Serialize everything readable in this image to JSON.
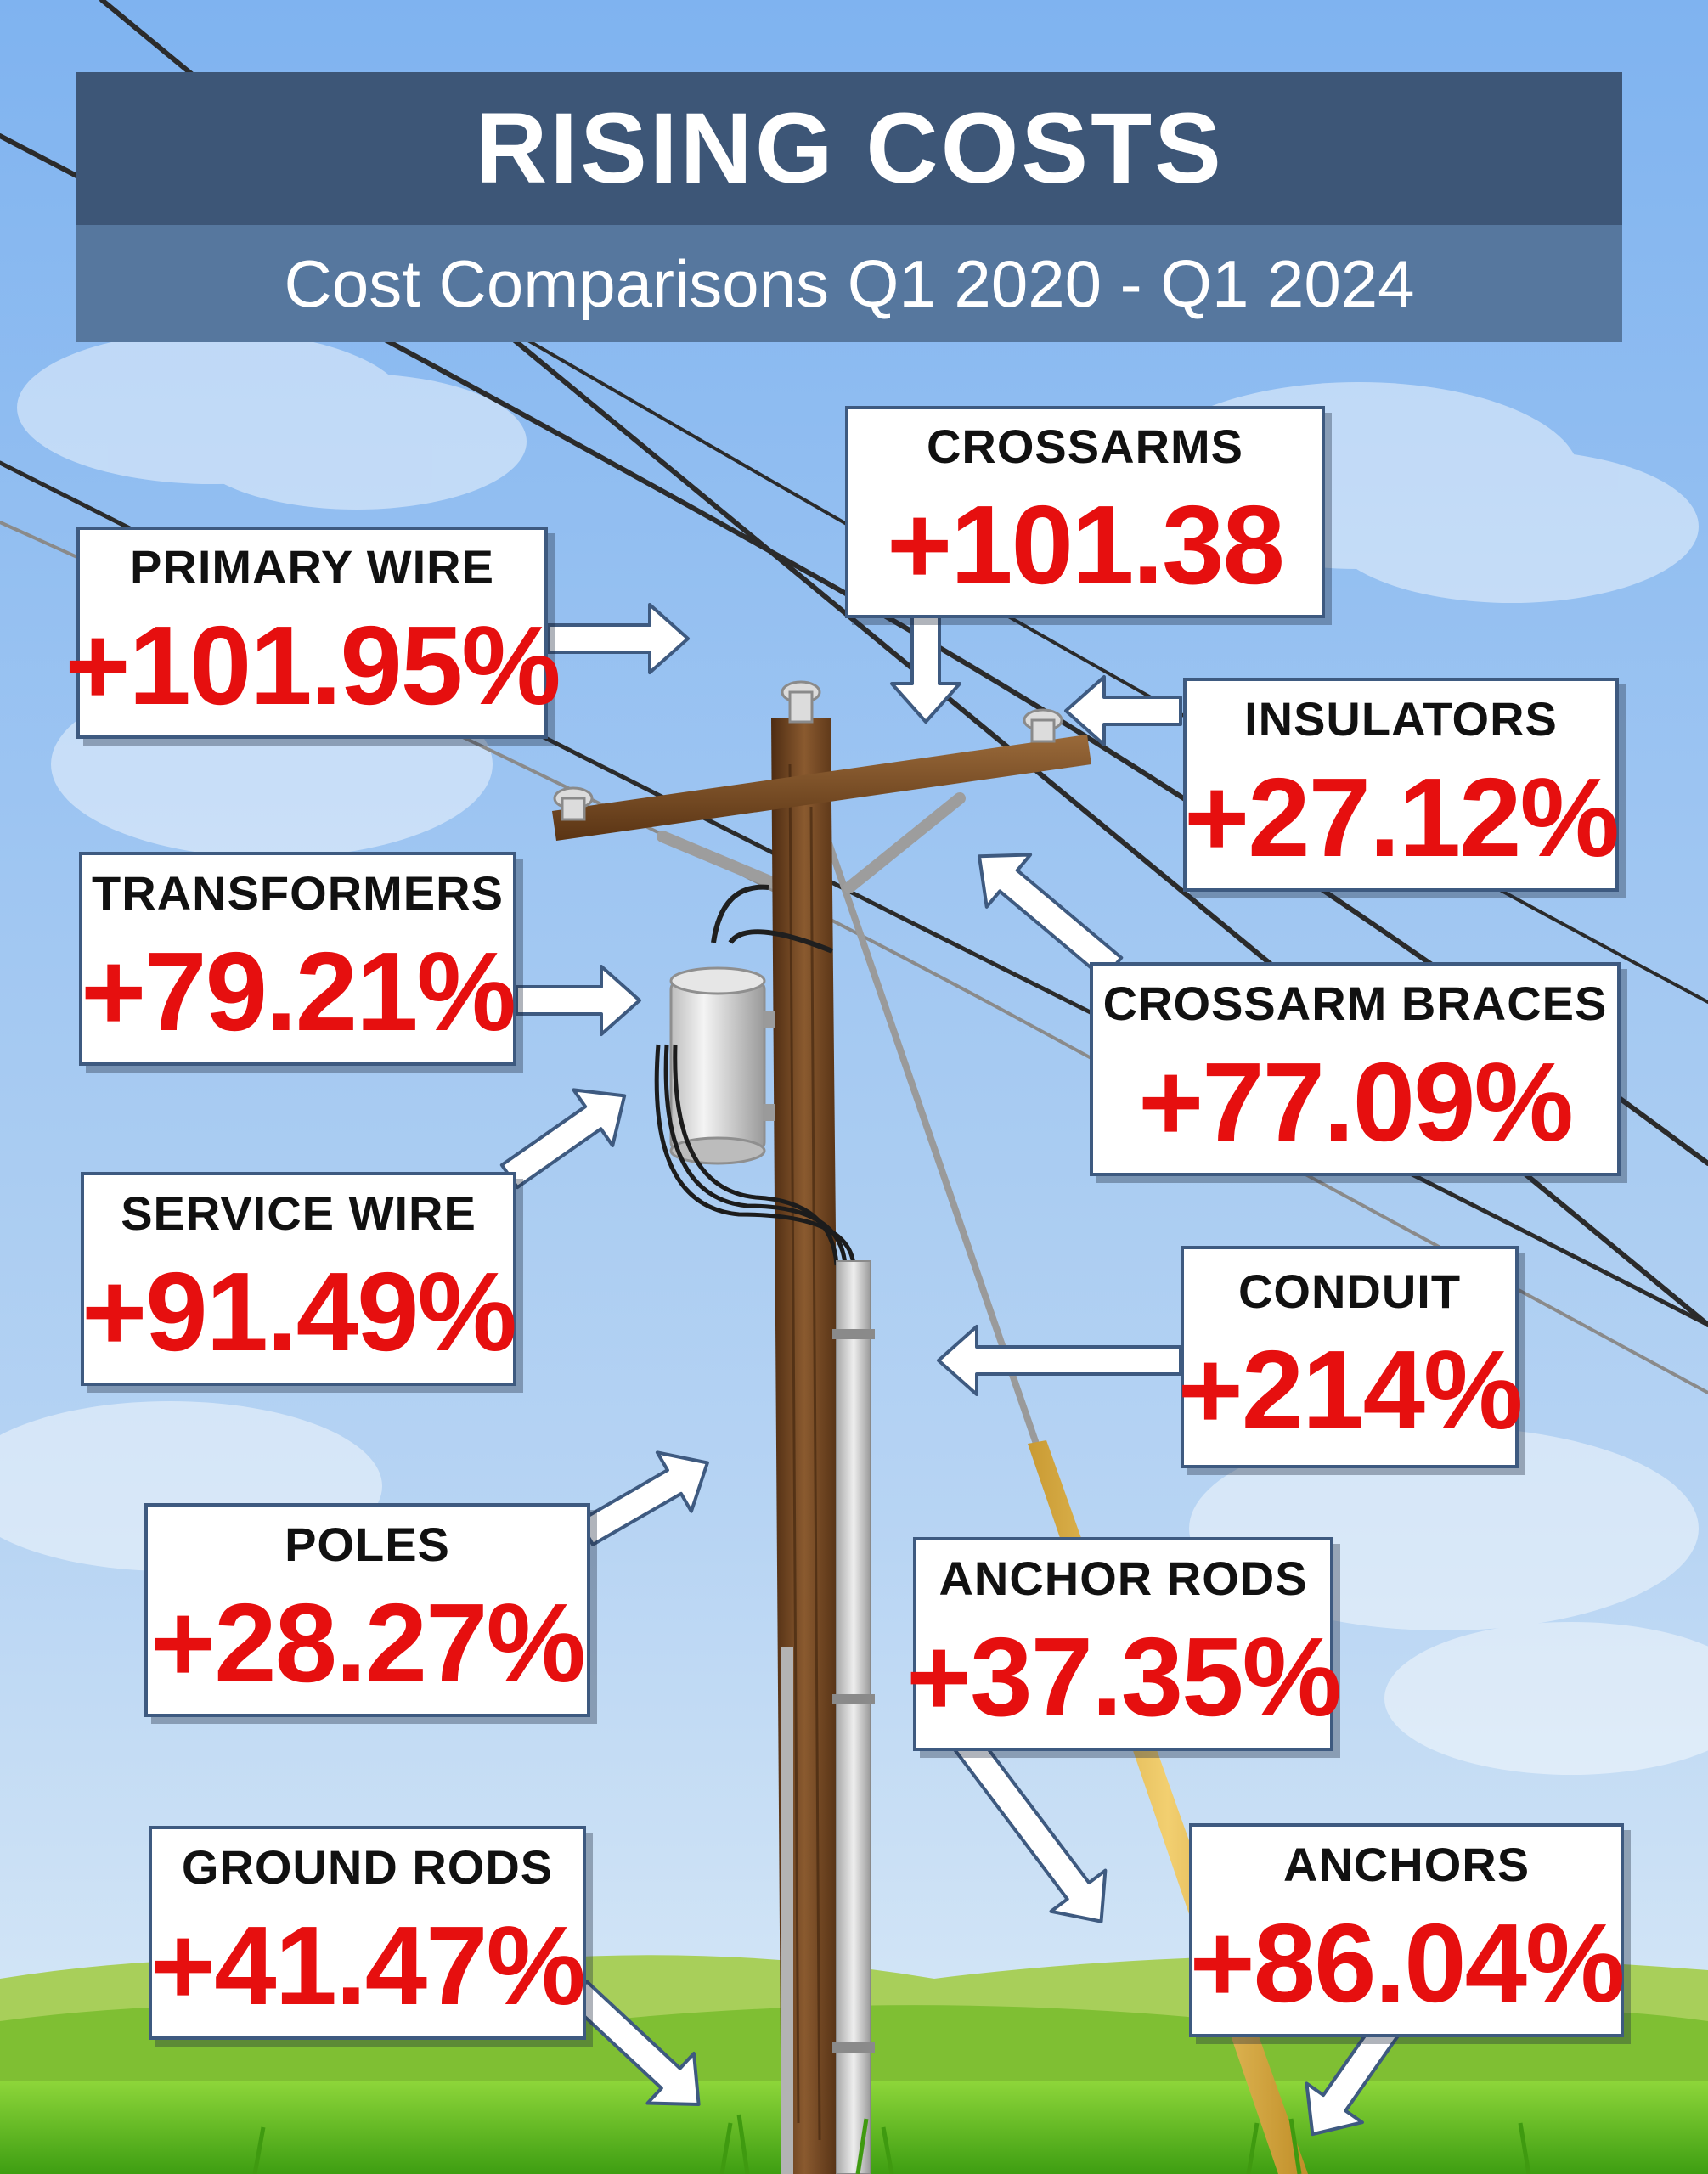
{
  "header": {
    "title": "RISING COSTS",
    "subtitle": "Cost Comparisons Q1 2020 - Q1 2024"
  },
  "items": [
    {
      "label": "PRIMARY WIRE",
      "value": "+101.95%"
    },
    {
      "label": "CROSSARMS",
      "value": "+101.38"
    },
    {
      "label": "INSULATORS",
      "value": "+27.12%"
    },
    {
      "label": "TRANSFORMERS",
      "value": "+79.21%"
    },
    {
      "label": "CROSSARM BRACES",
      "value": "+77.09%"
    },
    {
      "label": "SERVICE WIRE",
      "value": "+91.49%"
    },
    {
      "label": "CONDUIT",
      "value": "+214%"
    },
    {
      "label": "POLES",
      "value": "+28.27%"
    },
    {
      "label": "ANCHOR RODS",
      "value": "+37.35%"
    },
    {
      "label": "GROUND RODS",
      "value": "+41.47%"
    },
    {
      "label": "ANCHORS",
      "value": "+86.04%"
    }
  ],
  "colors": {
    "header_bg": "#3d5677",
    "subheader_bg": "#56779e",
    "card_border": "#3e5a80",
    "value_red": "#e60f0f",
    "sky_top": "#7fb3f0",
    "sky_bottom": "#cfe3f5",
    "grass": "#5fbf1e",
    "pole": "#6b3f1c"
  }
}
